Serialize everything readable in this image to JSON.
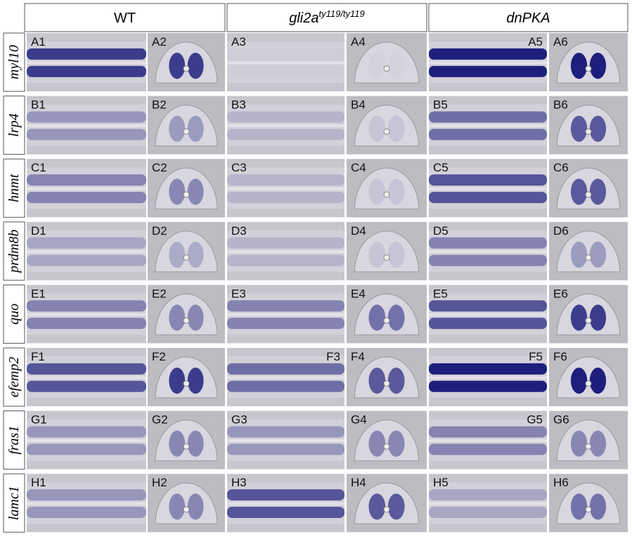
{
  "header": {
    "columns": [
      {
        "label": "WT"
      },
      {
        "label": "gli2a",
        "superscript": "ty119/ty119"
      },
      {
        "label": "dnPKA"
      }
    ]
  },
  "rows": [
    {
      "gene": "myl10",
      "panels": [
        "A1",
        "A2",
        "A3",
        "A4",
        "A5",
        "A6"
      ]
    },
    {
      "gene": "lrp4",
      "panels": [
        "B1",
        "B2",
        "B3",
        "B4",
        "B5",
        "B6"
      ]
    },
    {
      "gene": "hnmt",
      "panels": [
        "C1",
        "C2",
        "C3",
        "C4",
        "C5",
        "C6"
      ]
    },
    {
      "gene": "prdm8b",
      "panels": [
        "D1",
        "D2",
        "D3",
        "D4",
        "D5",
        "D6"
      ]
    },
    {
      "gene": "quo",
      "panels": [
        "E1",
        "E2",
        "E3",
        "E4",
        "E5",
        "E6"
      ]
    },
    {
      "gene": "efemp2",
      "panels": [
        "F1",
        "F2",
        "F3",
        "F4",
        "F5",
        "F6"
      ]
    },
    {
      "gene": "fras1",
      "panels": [
        "G1",
        "G2",
        "G3",
        "G4",
        "G5",
        "G6"
      ]
    },
    {
      "gene": "lamc1",
      "panels": [
        "H1",
        "H2",
        "H3",
        "H4",
        "H5",
        "H6"
      ]
    }
  ]
}
